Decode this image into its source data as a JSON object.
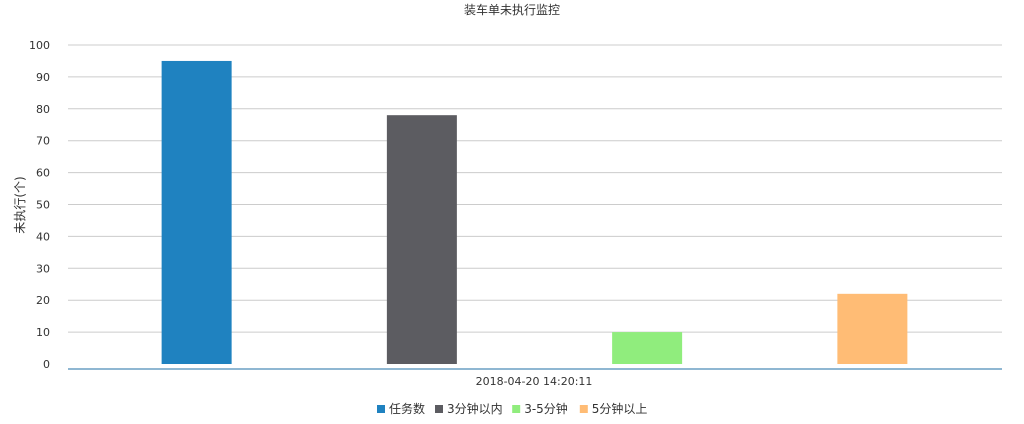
{
  "chart_data": {
    "type": "bar",
    "title": "装车单未执行监控",
    "ylabel": "未执行(个)",
    "xlabel": "",
    "categories": [
      "2018-04-20 14:20:11"
    ],
    "series": [
      {
        "name": "任务数",
        "values": [
          95
        ],
        "color": "#1f82c0"
      },
      {
        "name": "3分钟以内",
        "values": [
          78
        ],
        "color": "#5c5c61"
      },
      {
        "name": "3-5分钟",
        "values": [
          10
        ],
        "color": "#90ed7d"
      },
      {
        "name": "5分钟以上",
        "values": [
          22
        ],
        "color": "#ffbc75"
      }
    ],
    "ylim": [
      0,
      100
    ],
    "yticks": [
      0,
      10,
      20,
      30,
      40,
      50,
      60,
      70,
      80,
      90,
      100
    ],
    "grid": true,
    "legend_position": "bottom-center"
  },
  "colors": {
    "grid": "#cccccc",
    "axis": "#1f6fa6",
    "text": "#333333"
  }
}
